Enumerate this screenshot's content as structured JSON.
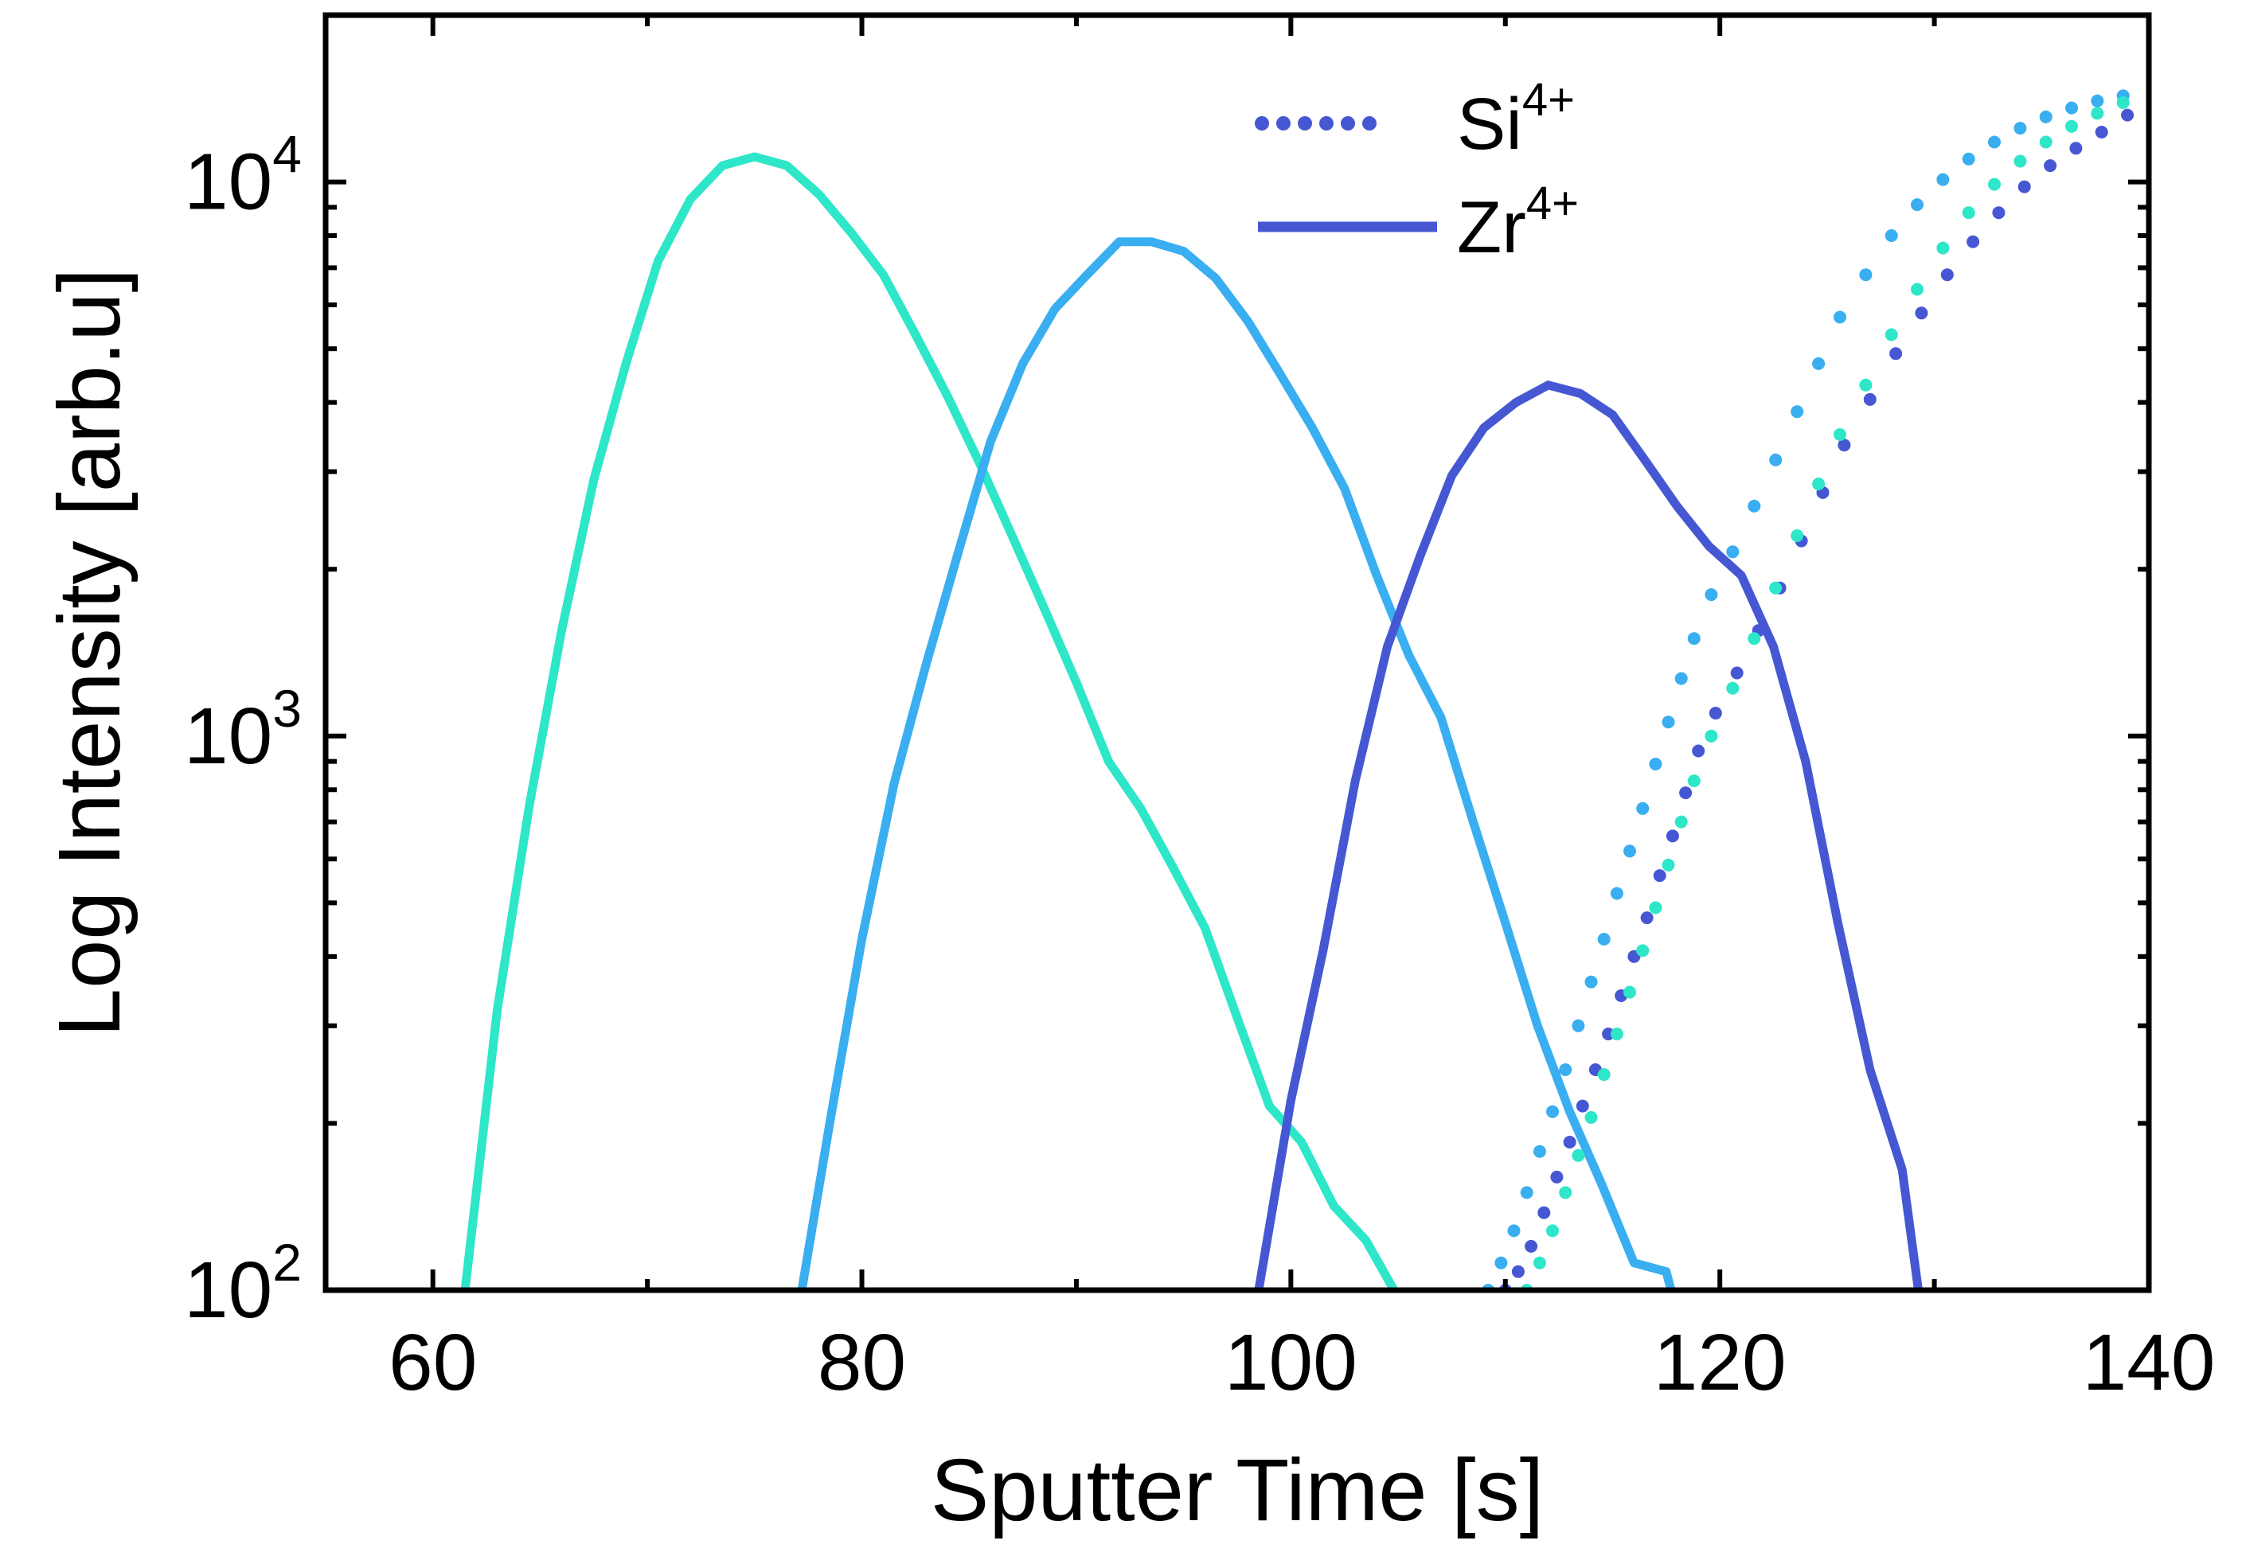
{
  "chart_data": {
    "type": "line",
    "xlabel": "Sputter Time [s]",
    "ylabel": "Log Intensity [arb.u]",
    "xlim": [
      55,
      140
    ],
    "ylim": [
      100,
      20000
    ],
    "yscale": "log",
    "x_ticks": [
      60,
      80,
      100,
      120,
      140
    ],
    "y_ticks": [
      {
        "value": 100,
        "base": "10",
        "exp": "2"
      },
      {
        "value": 1000,
        "base": "10",
        "exp": "3"
      },
      {
        "value": 10000,
        "base": "10",
        "exp": "4"
      }
    ],
    "grid": false,
    "legend_position": "top-right",
    "legend": [
      {
        "base": "Si",
        "sup": "4+",
        "style": "dotted",
        "color": "#4657d3"
      },
      {
        "base": "Zr",
        "sup": "4+",
        "style": "solid",
        "color": "#4657d3"
      }
    ],
    "series": [
      {
        "style": "solid",
        "color": "#2ee6c8",
        "x": [
          60.5,
          61.5,
          63,
          64.5,
          66,
          67.5,
          69,
          70.5,
          72,
          73.5,
          75,
          76.5,
          78,
          79.5,
          81,
          82.5,
          84,
          85.5,
          87,
          88.5,
          90,
          91.5,
          93,
          94.5,
          96,
          97.5,
          99,
          100.5,
          102,
          103.5,
          105,
          105.7
        ],
        "y": [
          60,
          100,
          320,
          750,
          1550,
          2900,
          4700,
          7200,
          9300,
          10700,
          11100,
          10700,
          9500,
          8100,
          6800,
          5300,
          4100,
          3100,
          2300,
          1700,
          1250,
          900,
          740,
          580,
          450,
          310,
          215,
          185,
          142,
          123,
          97,
          85
        ]
      },
      {
        "style": "solid",
        "color": "#39aef0",
        "x": [
          76.5,
          77.2,
          78.5,
          80,
          81.5,
          83,
          84.5,
          86,
          87.5,
          89,
          90.5,
          92,
          93.5,
          95,
          96.5,
          98,
          99.5,
          101,
          102.5,
          104,
          105.5,
          107,
          108.5,
          110,
          111.5,
          113,
          114.5,
          116,
          117.5,
          118.2
        ],
        "y": [
          60,
          100,
          200,
          430,
          820,
          1350,
          2150,
          3400,
          4700,
          5900,
          6800,
          7800,
          7800,
          7500,
          6700,
          5600,
          4500,
          3600,
          2800,
          1950,
          1400,
          1080,
          700,
          460,
          300,
          210,
          155,
          112,
          108,
          85
        ]
      },
      {
        "style": "solid",
        "color": "#4657d3",
        "x": [
          97.8,
          98.5,
          100,
          101.5,
          103,
          104.5,
          106,
          107.5,
          109,
          110.5,
          112,
          113.5,
          115,
          116.5,
          118,
          119.5,
          121,
          122.5,
          124,
          125.5,
          127,
          128.5,
          129.5
        ],
        "y": [
          70,
          100,
          220,
          410,
          830,
          1450,
          2100,
          2950,
          3600,
          4000,
          4300,
          4150,
          3800,
          3150,
          2600,
          2200,
          1950,
          1450,
          900,
          460,
          250,
          165,
          85
        ]
      },
      {
        "style": "dotted",
        "color": "#4657d3",
        "x": [
          110,
          110.6,
          111.2,
          111.8,
          112.4,
          113,
          113.6,
          114.2,
          114.8,
          115.4,
          116,
          116.6,
          117.2,
          117.8,
          118.4,
          119,
          119.8,
          120.8,
          121.8,
          122.8,
          123.8,
          124.8,
          125.8,
          127,
          128.2,
          129.4,
          130.6,
          131.8,
          133,
          134.2,
          135.4,
          136.6,
          137.8,
          139
        ],
        "y": [
          100,
          108,
          120,
          138,
          160,
          185,
          215,
          250,
          290,
          340,
          400,
          470,
          560,
          660,
          790,
          940,
          1100,
          1300,
          1550,
          1850,
          2250,
          2750,
          3350,
          4050,
          4900,
          5800,
          6800,
          7800,
          8800,
          9800,
          10700,
          11500,
          12300,
          13200
        ]
      },
      {
        "style": "dotted",
        "color": "#39aef0",
        "x": [
          109.2,
          109.8,
          110.4,
          111,
          111.6,
          112.2,
          112.8,
          113.4,
          114,
          114.6,
          115.2,
          115.8,
          116.4,
          117,
          117.6,
          118.2,
          118.8,
          119.6,
          120.6,
          121.6,
          122.6,
          123.6,
          124.6,
          125.6,
          126.8,
          128,
          129.2,
          130.4,
          131.6,
          132.8,
          134,
          135.2,
          136.4,
          137.6,
          138.8
        ],
        "y": [
          100,
          112,
          128,
          150,
          178,
          210,
          250,
          300,
          360,
          430,
          520,
          620,
          740,
          890,
          1060,
          1270,
          1500,
          1800,
          2150,
          2600,
          3150,
          3850,
          4700,
          5700,
          6800,
          8000,
          9100,
          10100,
          11000,
          11800,
          12500,
          13100,
          13600,
          14000,
          14300
        ]
      },
      {
        "style": "dotted",
        "color": "#2ee6c8",
        "x": [
          111,
          111.6,
          112.2,
          112.8,
          113.4,
          114,
          114.6,
          115.2,
          115.8,
          116.4,
          117,
          117.6,
          118.2,
          118.8,
          119.6,
          120.6,
          121.6,
          122.6,
          123.6,
          124.6,
          125.6,
          126.8,
          128,
          129.2,
          130.4,
          131.6,
          132.8,
          134,
          135.2,
          136.4,
          137.6,
          138.8
        ],
        "y": [
          100,
          112,
          128,
          150,
          175,
          205,
          245,
          290,
          345,
          410,
          490,
          585,
          700,
          830,
          1000,
          1220,
          1500,
          1850,
          2300,
          2850,
          3500,
          4300,
          5300,
          6400,
          7600,
          8800,
          9900,
          10900,
          11800,
          12600,
          13300,
          13900
        ]
      }
    ]
  }
}
